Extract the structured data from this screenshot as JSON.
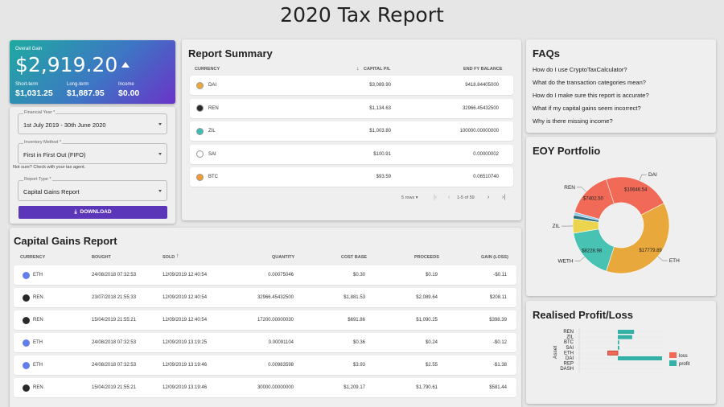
{
  "page": {
    "title": "2020 Tax Report"
  },
  "gain": {
    "label": "Overall Gain",
    "value": "$2,919.20",
    "short_label": "Short-term",
    "short_value": "$1,031.25",
    "long_label": "Long-term",
    "long_value": "$1,887.95",
    "income_label": "Income",
    "income_value": "$0.00"
  },
  "form": {
    "fy_label": "Financial Year *",
    "fy_value": "1st July 2019 - 30th June 2020",
    "inv_label": "Inventory Method *",
    "inv_value": "First in First Out (FIFO)",
    "hint": "Not sure? Check with your tax agent.",
    "type_label": "Report Type *",
    "type_value": "Capital Gains Report",
    "download": "DOWNLOAD"
  },
  "summary": {
    "title": "Report Summary",
    "headers": {
      "currency": "CURRENCY",
      "pl": "CAPITAL P/L",
      "balance": "END FY BALANCE"
    },
    "rows": [
      {
        "coin": "DAI",
        "pl": "$3,089.90",
        "balance": "9418.84405000",
        "color": "#f0a53a"
      },
      {
        "coin": "REN",
        "pl": "$1,134.63",
        "balance": "32966.45432500",
        "color": "#2a2a2a"
      },
      {
        "coin": "ZIL",
        "pl": "$1,003.80",
        "balance": "100000.00000000",
        "color": "#3bbfb3"
      },
      {
        "coin": "SAI",
        "pl": "$100.91",
        "balance": "0.00000002",
        "color": "#ffffff"
      },
      {
        "coin": "BTC",
        "pl": "$93.59",
        "balance": "0.06510740",
        "color": "#f29a2e"
      }
    ],
    "rows_label": "5 rows",
    "page_info": "1-5 of 59"
  },
  "cg": {
    "title": "Capital Gains Report",
    "headers": {
      "currency": "CURRENCY",
      "bought": "BOUGHT",
      "sold": "SOLD",
      "quantity": "QUANTITY",
      "cost": "COST BASE",
      "proceeds": "PROCEEDS",
      "gain": "GAIN (LOSS)"
    },
    "rows": [
      {
        "coin": "ETH",
        "bought": "24/08/2018 07:32:53",
        "sold": "12/09/2019 12:40:54",
        "quantity": "0.00075046",
        "cost": "$0.30",
        "proceeds": "$0.19",
        "gain": "-$0.11"
      },
      {
        "coin": "REN",
        "bought": "23/07/2018 21:55:33",
        "sold": "12/09/2019 12:40:54",
        "quantity": "32966.45432500",
        "cost": "$1,881.53",
        "proceeds": "$2,089.64",
        "gain": "$208.11"
      },
      {
        "coin": "REN",
        "bought": "15/04/2019 21:55:21",
        "sold": "12/09/2019 12:40:54",
        "quantity": "17200.00000030",
        "cost": "$691.86",
        "proceeds": "$1,090.25",
        "gain": "$398.39"
      },
      {
        "coin": "ETH",
        "bought": "24/08/2018 07:32:53",
        "sold": "12/09/2019 13:19:25",
        "quantity": "0.00091104",
        "cost": "$0.36",
        "proceeds": "$0.24",
        "gain": "-$0.12"
      },
      {
        "coin": "ETH",
        "bought": "24/08/2018 07:32:53",
        "sold": "12/09/2019 13:19:46",
        "quantity": "0.00983598",
        "cost": "$3.93",
        "proceeds": "$2.55",
        "gain": "-$1.38"
      },
      {
        "coin": "REN",
        "bought": "15/04/2019 21:55:21",
        "sold": "12/09/2019 13:19:46",
        "quantity": "30000.00000000",
        "cost": "$1,209.17",
        "proceeds": "$1,790.61",
        "gain": "$581.44"
      }
    ]
  },
  "faq": {
    "title": "FAQs",
    "items": [
      "How do I use CryptoTaxCalculator?",
      "What do the transaction categories mean?",
      "How do I make sure this report is accurate?",
      "What if my capital gains seem incorrect?",
      "Why is there missing income?"
    ]
  },
  "eoy": {
    "title": "EOY Portfolio",
    "chart_data": {
      "type": "pie",
      "slices": [
        {
          "label": "DAI",
          "value": 10646.54,
          "value_label": "$10646.54",
          "color": "#f06a57"
        },
        {
          "label": "ETH",
          "value": 17779.89,
          "value_label": "$17779.89",
          "color": "#e8a83c"
        },
        {
          "label": "WETH",
          "value": 8228.98,
          "value_label": "$8228.98",
          "color": "#47c2b3"
        },
        {
          "label": "ZIL",
          "value": 2300,
          "value_label": "",
          "color": "#ecd44e"
        },
        {
          "label": "",
          "value": 600,
          "value_label": "",
          "color": "#2f6f84"
        },
        {
          "label": "",
          "value": 450,
          "value_label": "",
          "color": "#93c9e8"
        },
        {
          "label": "REN",
          "value": 7402.5,
          "value_label": "$7402.50",
          "color": "#f06a57"
        }
      ]
    }
  },
  "rpl": {
    "title": "Realised Profit/Loss",
    "chart_data": {
      "type": "bar",
      "orientation": "horizontal",
      "categories": [
        "REN",
        "ZIL",
        "BTC",
        "SAI",
        "ETH",
        "DAI",
        "REP",
        "DASH"
      ],
      "series": [
        {
          "name": "loss",
          "color": "#f06a57",
          "values": [
            0,
            0,
            0,
            0,
            -700,
            0,
            0,
            0
          ]
        },
        {
          "name": "profit",
          "color": "#34b1a6",
          "values": [
            1135,
            1004,
            94,
            101,
            0,
            3090,
            0,
            0
          ]
        }
      ],
      "ylabel": "Asset"
    }
  }
}
